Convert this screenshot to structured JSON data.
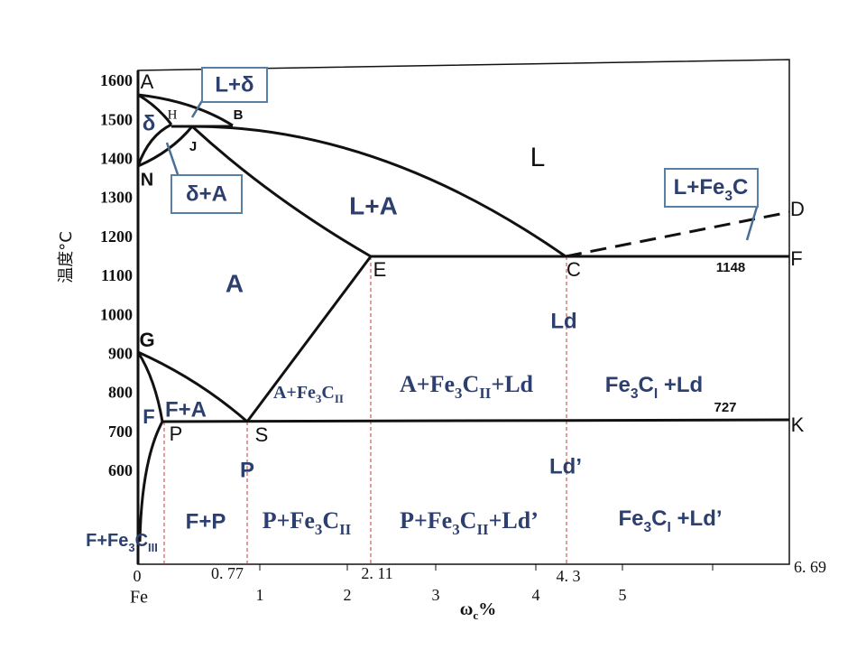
{
  "axes": {
    "y_label": "温度°C",
    "y_ticks": [
      1600,
      1500,
      1400,
      1300,
      1200,
      1100,
      1000,
      900,
      800,
      700,
      600
    ],
    "x_ticks": [
      "0",
      "0. 77",
      "1",
      "2",
      "2. 11",
      "3",
      "4",
      "4. 3",
      "5",
      "6. 69"
    ],
    "x_origin": "Fe",
    "x_label": [
      "ω",
      "c",
      "%"
    ]
  },
  "points": {
    "A": "A",
    "H": "H",
    "B": "B",
    "J": "J",
    "N": "N",
    "E": "E",
    "C": "C",
    "D": "D",
    "F_right": "F",
    "G": "G",
    "F_left": "F",
    "P": "P",
    "S": "S",
    "K": "K"
  },
  "temperatures": {
    "eutectic": "1148",
    "eutectoid": "727"
  },
  "regions": {
    "L": "L",
    "delta": "δ",
    "L_A": "L+A",
    "A": "A",
    "Ld": "Ld",
    "F_A": "F+A",
    "P": "P",
    "Ld_prime": "Ld’",
    "A_Fe3CII": [
      "A+Fe",
      "3",
      "C",
      "II"
    ],
    "A_Fe3CII_Ld": [
      "A+Fe",
      "3",
      "C",
      "II",
      "+Ld"
    ],
    "Fe3CI_Ld": [
      "Fe",
      "3",
      "C",
      "I",
      " +Ld"
    ],
    "F_P": "F+P",
    "P_Fe3CII": [
      "P+Fe",
      "3",
      "C",
      "II"
    ],
    "P_Fe3CII_Ld": [
      "P+Fe",
      "3",
      "C",
      "II",
      "+Ld’"
    ],
    "Fe3CI_Ld_prime": [
      "Fe",
      "3",
      "C",
      "I",
      " +Ld’"
    ],
    "F_Fe3CIII": [
      "F+Fe",
      "3",
      "C",
      "III"
    ]
  },
  "callouts": {
    "L_delta": "L+δ",
    "delta_A": "δ+A",
    "L_Fe3C": [
      "L+Fe",
      "3",
      "C"
    ]
  }
}
